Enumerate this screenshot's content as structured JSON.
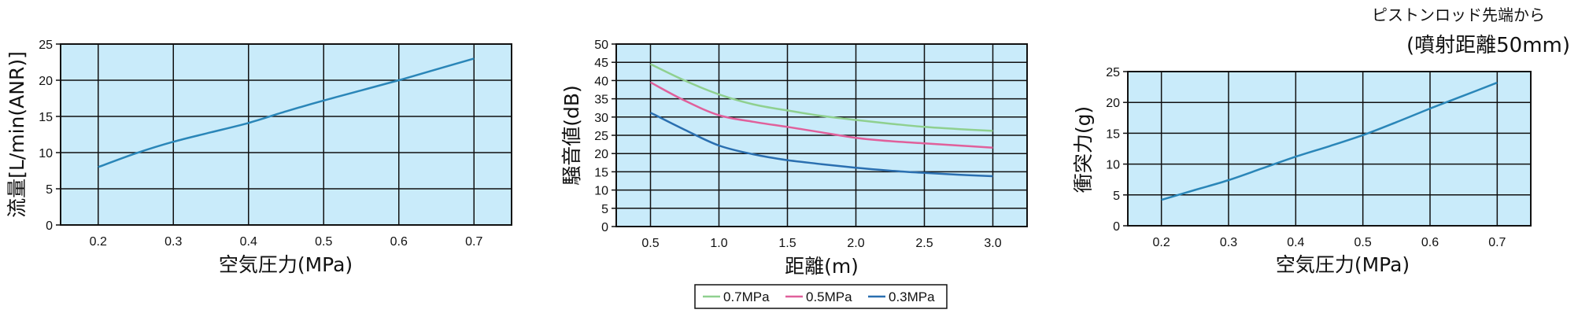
{
  "chart_data": [
    {
      "type": "line",
      "xlabel": "空気圧力(MPa)",
      "ylabel": "流量[L/min(ANR)]",
      "xlim": [
        0.15,
        0.75
      ],
      "ylim": [
        0,
        25
      ],
      "xticks": [
        "0.2",
        "0.3",
        "0.4",
        "0.5",
        "0.6",
        "0.7"
      ],
      "yticks": [
        "0",
        "5",
        "10",
        "15",
        "20",
        "25"
      ],
      "grid": true,
      "series": [
        {
          "x": [
            0.2,
            0.25,
            0.3,
            0.35,
            0.4,
            0.45,
            0.5,
            0.55,
            0.6,
            0.65,
            0.7
          ],
          "y": [
            8.0,
            9.9,
            11.5,
            12.8,
            14.1,
            15.7,
            17.2,
            18.6,
            20.0,
            21.5,
            23.0
          ],
          "color": "#2a86b8"
        }
      ]
    },
    {
      "type": "line",
      "xlabel": "距離(m)",
      "ylabel": "騒音値(dB)",
      "xlim": [
        0.25,
        3.25
      ],
      "ylim": [
        0,
        50
      ],
      "xticks": [
        "0.5",
        "1.0",
        "1.5",
        "2.0",
        "2.5",
        "3.0"
      ],
      "yticks": [
        "0",
        "5",
        "10",
        "15",
        "20",
        "25",
        "30",
        "35",
        "40",
        "45",
        "50"
      ],
      "grid": true,
      "legend_position": "bottom",
      "series": [
        {
          "name": "0.7MPa",
          "color": "#8fd08f",
          "x": [
            0.5,
            0.75,
            1.0,
            1.25,
            1.5,
            1.75,
            2.0,
            2.25,
            2.5,
            2.75,
            3.0
          ],
          "y": [
            44.5,
            40.0,
            36.2,
            33.5,
            31.8,
            30.3,
            29.2,
            28.2,
            27.3,
            26.7,
            26.2
          ]
        },
        {
          "name": "0.5MPa",
          "color": "#e0609b",
          "x": [
            0.5,
            0.75,
            1.0,
            1.25,
            1.5,
            1.75,
            2.0,
            2.25,
            2.5,
            2.75,
            3.0
          ],
          "y": [
            39.5,
            34.5,
            30.5,
            28.7,
            27.3,
            25.8,
            24.3,
            23.4,
            22.8,
            22.2,
            21.6
          ]
        },
        {
          "name": "0.3MPa",
          "color": "#2a6fb0",
          "x": [
            0.5,
            0.75,
            1.0,
            1.25,
            1.5,
            1.75,
            2.0,
            2.25,
            2.5,
            2.75,
            3.0
          ],
          "y": [
            31.2,
            26.5,
            22.2,
            19.8,
            18.2,
            17.1,
            16.1,
            15.3,
            14.7,
            14.2,
            13.8
          ]
        }
      ]
    },
    {
      "type": "line",
      "title": "ピストンロッド先端から",
      "subtitle": "(噴射距離50mm)",
      "xlabel": "空気圧力(MPa)",
      "ylabel": "衝突力(g)",
      "xlim": [
        0.15,
        0.75
      ],
      "ylim": [
        0,
        25
      ],
      "xticks": [
        "0.2",
        "0.3",
        "0.4",
        "0.5",
        "0.6",
        "0.7"
      ],
      "yticks": [
        "0",
        "5",
        "10",
        "15",
        "20",
        "25"
      ],
      "grid": true,
      "series": [
        {
          "x": [
            0.2,
            0.25,
            0.3,
            0.35,
            0.4,
            0.45,
            0.5,
            0.55,
            0.6,
            0.65,
            0.7
          ],
          "y": [
            4.2,
            5.8,
            7.4,
            9.3,
            11.2,
            12.9,
            14.7,
            16.8,
            19.0,
            21.1,
            23.2
          ],
          "color": "#2a86b8"
        }
      ]
    }
  ]
}
